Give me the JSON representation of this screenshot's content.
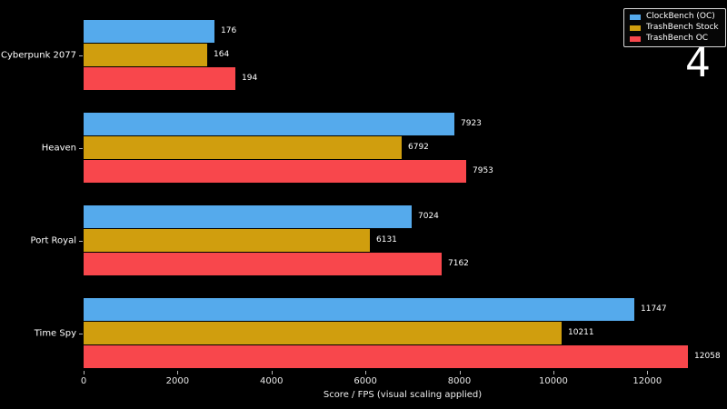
{
  "chart_data": {
    "type": "bar",
    "orientation": "horizontal",
    "xlabel": "Score / FPS (visual scaling applied)",
    "categories": [
      "Cyberpunk 2077",
      "Heaven",
      "Port Royal",
      "Time Spy"
    ],
    "series": [
      {
        "name": "ClockBench (OC)",
        "color": "#55aaec",
        "values": [
          176,
          7923,
          7024,
          11747
        ],
        "visual_units": [
          2790,
          7900,
          6990,
          11730
        ]
      },
      {
        "name": "TrashBench Stock",
        "color": "#d09e0e",
        "values": [
          164,
          6792,
          6131,
          10211
        ],
        "visual_units": [
          2630,
          6780,
          6100,
          10170
        ]
      },
      {
        "name": "TrashBench OC",
        "color": "#f8474c",
        "values": [
          194,
          7953,
          7162,
          12058
        ],
        "visual_units": [
          3230,
          8150,
          7630,
          12860
        ]
      }
    ],
    "xticks": [
      0,
      2000,
      4000,
      6000,
      8000,
      10000,
      12000
    ],
    "xlim": [
      0,
      13600
    ],
    "legend_position": "top-right",
    "grid": false,
    "note": "bar lengths use visual scaling; labels show true values"
  },
  "overlay": {
    "number": "4"
  },
  "colors": {
    "background": "#000000",
    "text": "#ffffff",
    "tick": "#b5b5b5"
  }
}
